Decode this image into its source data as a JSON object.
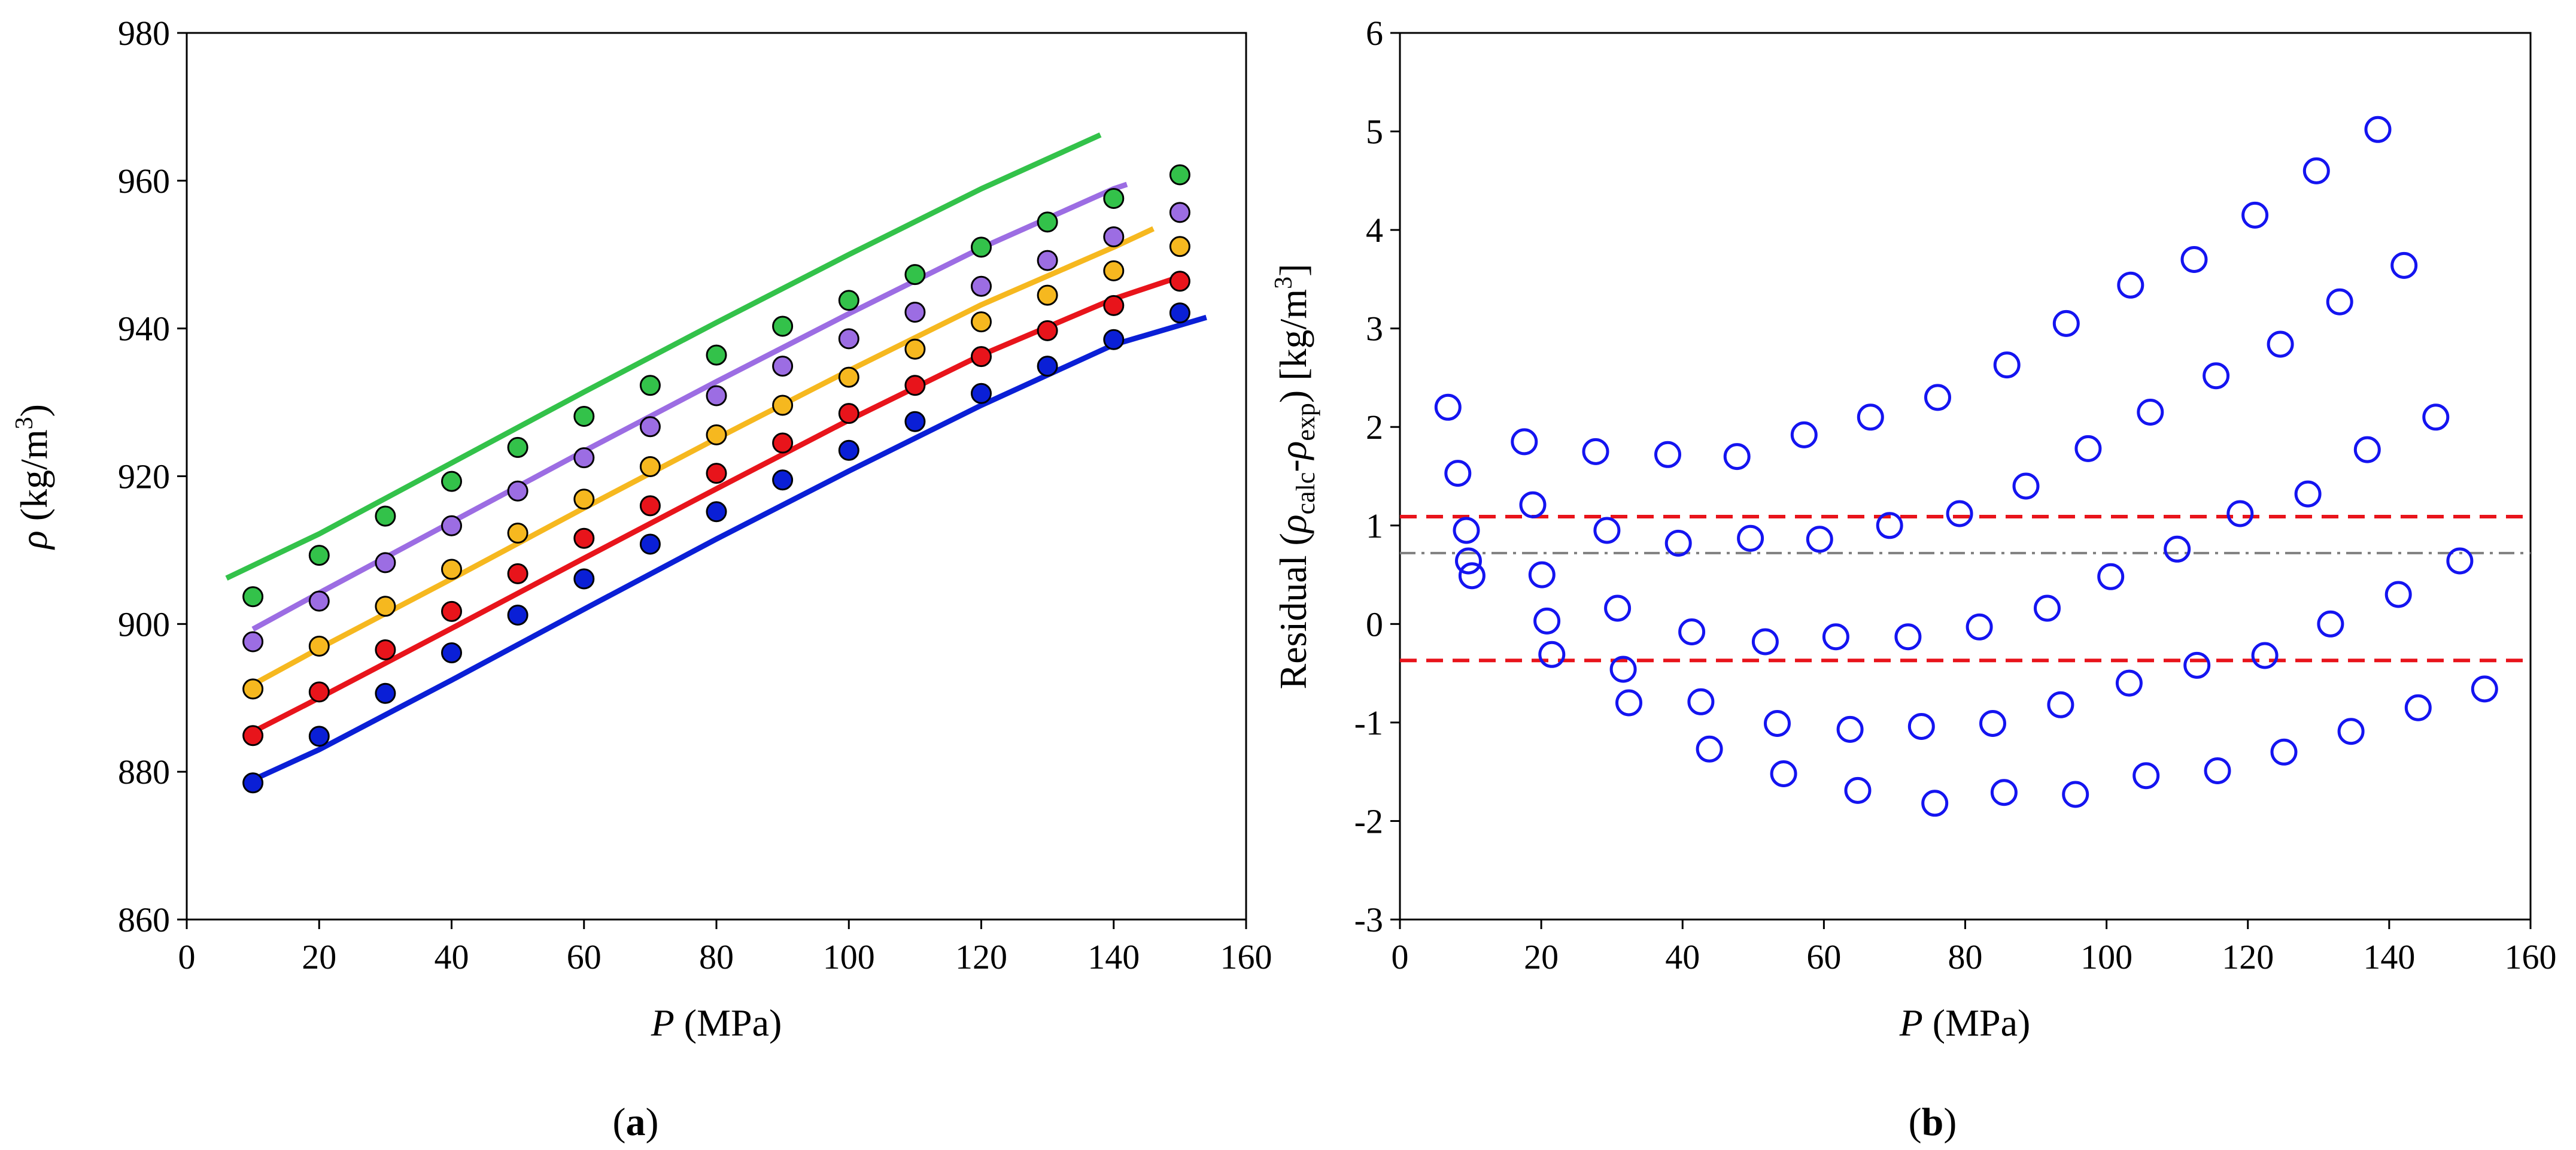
{
  "figure": {
    "panel_a_label": "(a)",
    "panel_b_label": "(b)"
  },
  "chart_data": [
    {
      "id": "a",
      "type": "scatter",
      "title": "",
      "xlabel_italic": "P",
      "xlabel_rest": " (MPa)",
      "ylabel_italic": "ρ",
      "ylabel_rest": " (kg/m",
      "ylabel_sup": "3",
      "ylabel_close": ")",
      "xlim": [
        0,
        160
      ],
      "ylim": [
        860,
        980
      ],
      "xticks": [
        0,
        20,
        40,
        60,
        80,
        100,
        120,
        140,
        160
      ],
      "yticks": [
        860,
        880,
        900,
        920,
        940,
        960,
        980
      ],
      "grid": false,
      "series": [
        {
          "name": "series-blue",
          "color": "#0a1fd6",
          "x": [
            10,
            20,
            30,
            40,
            50,
            60,
            70,
            80,
            90,
            100,
            110,
            120,
            130,
            140,
            150
          ],
          "y": [
            878.5,
            884.8,
            890.6,
            896.1,
            901.2,
            906.1,
            910.8,
            915.2,
            919.5,
            923.5,
            927.4,
            931.2,
            934.9,
            938.5,
            942.1
          ],
          "line_x": [
            10,
            20,
            40,
            60,
            80,
            100,
            120,
            140,
            154
          ],
          "line_y": [
            878.9,
            883.0,
            892.4,
            902.0,
            911.5,
            920.7,
            929.6,
            937.8,
            941.5
          ]
        },
        {
          "name": "series-red",
          "color": "#e8141b",
          "x": [
            10,
            20,
            30,
            40,
            50,
            60,
            70,
            80,
            90,
            100,
            110,
            120,
            130,
            140,
            150
          ],
          "y": [
            884.9,
            890.8,
            896.5,
            901.7,
            906.8,
            911.6,
            916.0,
            920.4,
            924.5,
            928.5,
            932.3,
            936.2,
            939.7,
            943.1,
            946.4
          ],
          "line_x": [
            10,
            20,
            40,
            60,
            80,
            100,
            120,
            140,
            150
          ],
          "line_y": [
            885.4,
            890.0,
            899.4,
            908.9,
            918.3,
            927.6,
            936.4,
            944.0,
            947.0
          ]
        },
        {
          "name": "series-yellow",
          "color": "#f6b81f",
          "x": [
            10,
            20,
            30,
            40,
            50,
            60,
            70,
            80,
            90,
            100,
            110,
            120,
            130,
            140,
            150
          ],
          "y": [
            891.2,
            897.0,
            902.4,
            907.4,
            912.3,
            916.9,
            921.3,
            925.6,
            929.6,
            933.4,
            937.2,
            940.9,
            944.5,
            947.8,
            951.1
          ],
          "line_x": [
            10,
            20,
            40,
            60,
            80,
            100,
            120,
            140,
            146
          ],
          "line_y": [
            891.8,
            896.7,
            906.1,
            915.7,
            925.1,
            934.3,
            943.2,
            951.0,
            953.5
          ]
        },
        {
          "name": "series-purple",
          "color": "#9c6de3",
          "x": [
            10,
            20,
            30,
            40,
            50,
            60,
            70,
            80,
            90,
            100,
            110,
            120,
            130,
            140,
            150
          ],
          "y": [
            897.6,
            903.1,
            908.3,
            913.3,
            918.0,
            922.5,
            926.7,
            930.9,
            934.9,
            938.6,
            942.2,
            945.7,
            949.2,
            952.4,
            955.7
          ],
          "line_x": [
            10,
            20,
            40,
            60,
            80,
            100,
            120,
            140,
            142
          ],
          "line_y": [
            899.3,
            904.2,
            913.8,
            923.4,
            932.8,
            942.0,
            950.9,
            958.9,
            959.5
          ]
        },
        {
          "name": "series-green",
          "color": "#33c24a",
          "x": [
            10,
            20,
            30,
            40,
            50,
            60,
            70,
            80,
            90,
            100,
            110,
            120,
            130,
            140,
            150
          ],
          "y": [
            903.7,
            909.3,
            914.6,
            919.3,
            923.9,
            928.1,
            932.3,
            936.4,
            940.3,
            943.8,
            947.3,
            951.0,
            954.4,
            957.6,
            960.8
          ],
          "line_x": [
            6,
            20,
            40,
            60,
            80,
            100,
            120,
            138
          ],
          "line_y": [
            906.2,
            912.2,
            921.8,
            931.4,
            940.8,
            950.0,
            958.9,
            966.2
          ]
        }
      ]
    },
    {
      "id": "b",
      "type": "scatter",
      "title": "",
      "xlabel_italic": "P",
      "xlabel_rest": " (MPa)",
      "ylabel_parts": [
        "Residual (",
        "ρ",
        "calc",
        "-",
        "ρ",
        "exp",
        ") [kg/m",
        "3",
        "]"
      ],
      "xlim": [
        0,
        160
      ],
      "ylim": [
        -3,
        6
      ],
      "xticks": [
        0,
        20,
        40,
        60,
        80,
        100,
        120,
        140,
        160
      ],
      "yticks": [
        -3,
        -2,
        -1,
        0,
        1,
        2,
        3,
        4,
        5,
        6
      ],
      "grid": false,
      "marker_color": "#1414f0",
      "residuals": {
        "x": [
          6.8,
          8.2,
          9.4,
          9.7,
          10.2,
          17.6,
          18.8,
          20.1,
          20.8,
          21.5,
          27.7,
          29.3,
          30.8,
          31.6,
          32.4,
          37.9,
          39.4,
          41.3,
          42.6,
          43.8,
          47.7,
          49.6,
          51.7,
          53.4,
          54.3,
          57.2,
          59.4,
          61.7,
          63.7,
          64.8,
          66.6,
          69.3,
          71.9,
          73.8,
          75.7,
          76.1,
          79.2,
          82.0,
          83.9,
          85.5,
          85.9,
          88.6,
          91.6,
          93.5,
          94.3,
          95.6,
          97.4,
          100.6,
          103.2,
          103.4,
          105.6,
          106.2,
          110.0,
          112.4,
          112.8,
          115.5,
          115.7,
          118.9,
          121.0,
          122.4,
          124.6,
          125.1,
          128.5,
          129.7,
          131.7,
          133.0,
          134.6,
          136.9,
          138.4,
          141.3,
          142.1,
          144.1,
          146.6,
          150.0,
          153.5
        ],
        "y": [
          2.2,
          1.53,
          0.95,
          0.64,
          0.49,
          1.85,
          1.21,
          0.5,
          0.03,
          -0.31,
          1.75,
          0.95,
          0.16,
          -0.46,
          -0.8,
          1.72,
          0.82,
          -0.08,
          -0.79,
          -1.27,
          1.7,
          0.87,
          -0.18,
          -1.01,
          -1.52,
          1.92,
          0.86,
          -0.13,
          -1.07,
          -1.69,
          2.1,
          1.0,
          -0.13,
          -1.04,
          -1.82,
          2.3,
          1.12,
          -0.03,
          -1.01,
          -1.71,
          2.63,
          1.4,
          0.16,
          -0.82,
          3.05,
          -1.73,
          1.78,
          0.48,
          -0.6,
          3.44,
          -1.54,
          2.15,
          0.76,
          3.7,
          -0.42,
          2.52,
          -1.49,
          1.12,
          4.15,
          -0.32,
          2.84,
          -1.3,
          1.32,
          4.6,
          0.0,
          3.27,
          -1.09,
          1.77,
          5.02,
          0.3,
          3.64,
          -0.85,
          2.1,
          0.64,
          -0.66
        ]
      },
      "mean_line": 0.72,
      "band_upper": 1.09,
      "band_lower": -0.37,
      "mean_color": "#808080",
      "band_color": "#e8141b"
    }
  ]
}
